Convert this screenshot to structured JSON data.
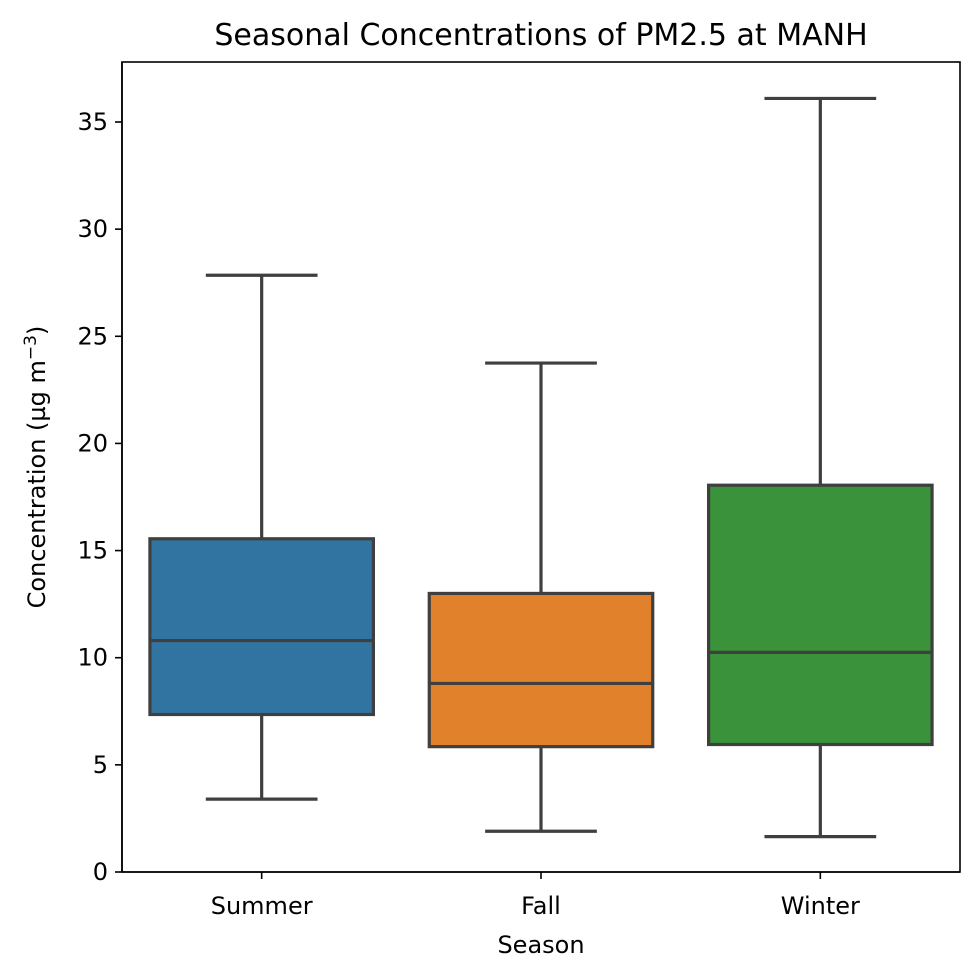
{
  "chart_data": {
    "type": "box",
    "title": "Seasonal Concentrations of PM2.5 at MANH",
    "xlabel": "Season",
    "ylabel": "Concentration (µg m",
    "ylabel_superscript": "−3",
    "ylabel_close": ")",
    "ylim": [
      0,
      37.8
    ],
    "yticks": [
      0,
      5,
      10,
      15,
      20,
      25,
      30,
      35
    ],
    "categories": [
      "Summer",
      "Fall",
      "Winter"
    ],
    "boxes": [
      {
        "name": "Summer",
        "whisker_low": 3.4,
        "q1": 7.35,
        "median": 10.8,
        "q3": 15.55,
        "whisker_high": 27.85,
        "color": "#3274a1"
      },
      {
        "name": "Fall",
        "whisker_low": 1.9,
        "q1": 5.85,
        "median": 8.8,
        "q3": 13.0,
        "whisker_high": 23.75,
        "color": "#e1812c"
      },
      {
        "name": "Winter",
        "whisker_low": 1.65,
        "q1": 5.95,
        "median": 10.25,
        "q3": 18.05,
        "whisker_high": 36.1,
        "color": "#3a923a"
      }
    ],
    "grid": false,
    "legend": false
  }
}
